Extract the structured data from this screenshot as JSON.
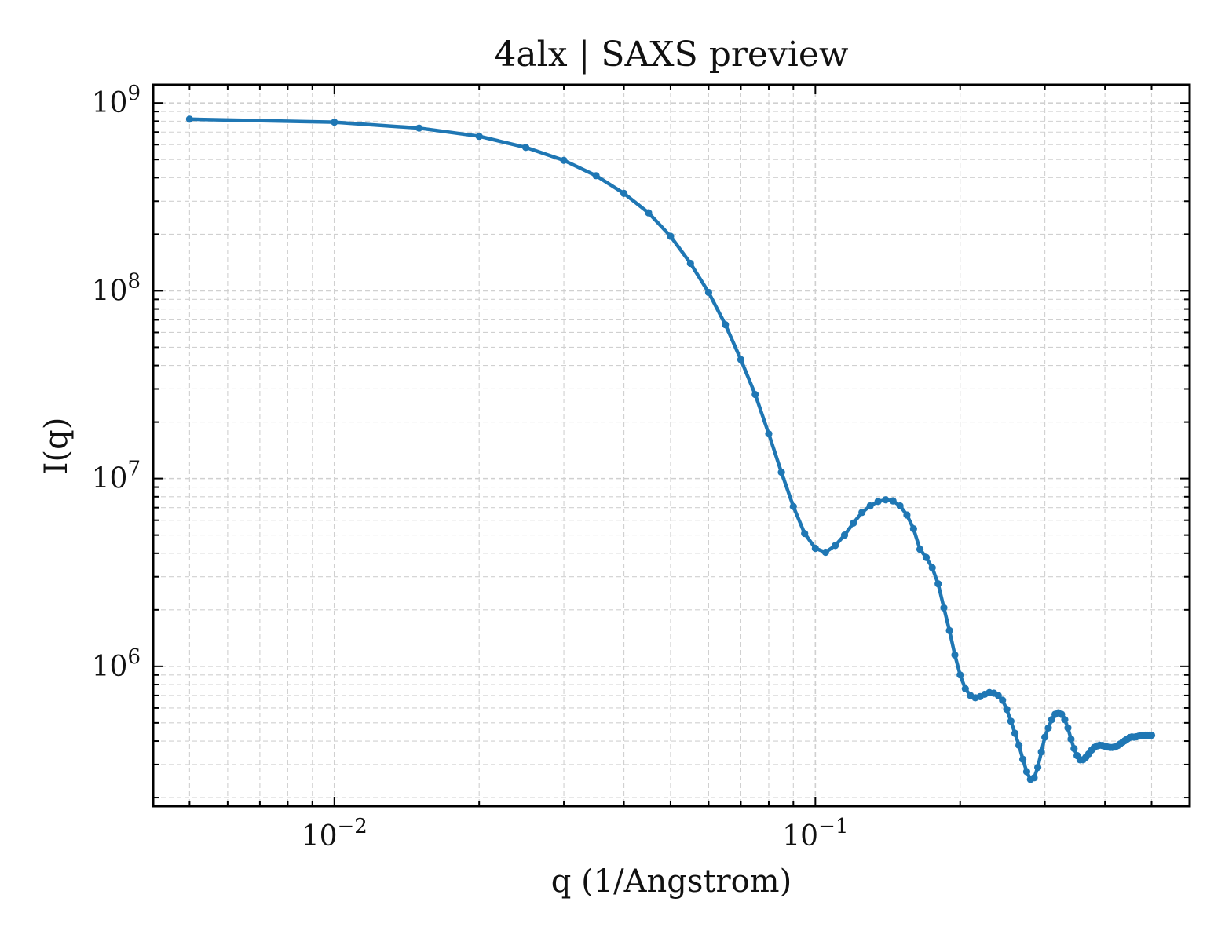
{
  "chart_data": {
    "type": "line",
    "title": "4alx | SAXS preview",
    "xlabel": "q (1/Angstrom)",
    "ylabel": "I(q)",
    "x_scale": "log",
    "y_scale": "log",
    "xlim": [
      0.0042,
      0.6
    ],
    "ylim": [
      180000,
      1250000000
    ],
    "x_ticks": [
      {
        "value": 0.01,
        "base": "10",
        "exp": "−2"
      },
      {
        "value": 0.1,
        "base": "10",
        "exp": "−1"
      }
    ],
    "y_ticks": [
      {
        "value": 1000000,
        "base": "10",
        "exp": "6"
      },
      {
        "value": 10000000,
        "base": "10",
        "exp": "7"
      },
      {
        "value": 100000000,
        "base": "10",
        "exp": "8"
      },
      {
        "value": 1000000000,
        "base": "10",
        "exp": "9"
      }
    ],
    "grid": true,
    "legend": "none",
    "colors": {
      "series": "#1f77b4",
      "grid": "#d0d0d0",
      "axes": "#000000"
    },
    "series": [
      {
        "x": [
          0.005,
          0.01,
          0.015,
          0.02,
          0.025,
          0.03,
          0.035,
          0.04,
          0.045,
          0.05,
          0.055,
          0.06,
          0.065,
          0.07,
          0.075,
          0.08,
          0.085,
          0.09,
          0.095,
          0.1,
          0.105,
          0.11,
          0.115,
          0.12,
          0.125,
          0.13,
          0.135,
          0.14,
          0.145,
          0.15,
          0.155,
          0.16,
          0.165,
          0.17,
          0.175,
          0.18,
          0.185,
          0.19,
          0.195,
          0.2,
          0.205,
          0.21,
          0.215,
          0.22,
          0.225,
          0.23,
          0.235,
          0.24,
          0.245,
          0.25,
          0.255,
          0.26,
          0.265,
          0.27,
          0.275,
          0.28,
          0.285,
          0.29,
          0.295,
          0.3,
          0.305,
          0.31,
          0.315,
          0.32,
          0.325,
          0.33,
          0.335,
          0.34,
          0.345,
          0.35,
          0.355,
          0.36,
          0.365,
          0.37,
          0.375,
          0.38,
          0.385,
          0.39,
          0.395,
          0.4,
          0.405,
          0.41,
          0.415,
          0.42,
          0.425,
          0.43,
          0.435,
          0.44,
          0.445,
          0.45,
          0.455,
          0.46,
          0.465,
          0.47,
          0.475,
          0.48,
          0.485,
          0.49,
          0.495,
          0.5
        ],
        "y": [
          820000000,
          790000000,
          735000000,
          665000000,
          580000000,
          495000000,
          410000000,
          330000000,
          260000000,
          195000000,
          140000000,
          98000000,
          66000000,
          43000000,
          28000000,
          17300000,
          10800000,
          7100000,
          5100000,
          4250000,
          4050000,
          4400000,
          5000000,
          5800000,
          6600000,
          7150000,
          7550000,
          7700000,
          7600000,
          7150000,
          6400000,
          5400000,
          4200000,
          3800000,
          3350000,
          2750000,
          2050000,
          1550000,
          1150000,
          900000,
          760000,
          700000,
          680000,
          690000,
          710000,
          725000,
          720000,
          700000,
          660000,
          590000,
          510000,
          440000,
          380000,
          320000,
          275000,
          250000,
          255000,
          290000,
          350000,
          420000,
          470000,
          520000,
          555000,
          565000,
          555000,
          520000,
          470000,
          410000,
          365000,
          335000,
          318000,
          318000,
          328000,
          342000,
          358000,
          370000,
          377000,
          380000,
          379000,
          376000,
          372000,
          370000,
          370000,
          372000,
          378000,
          386000,
          394000,
          402000,
          410000,
          418000,
          421000,
          420000,
          422000,
          425000,
          428000,
          430000,
          430000,
          430000,
          430000,
          430000
        ]
      }
    ]
  }
}
